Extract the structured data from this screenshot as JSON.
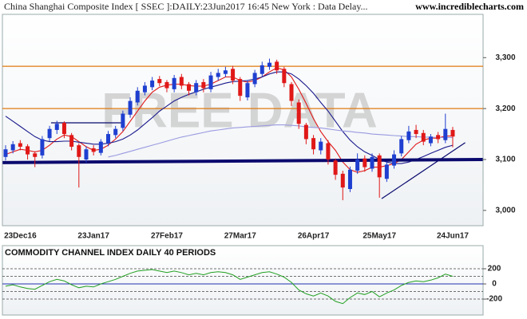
{
  "header": {
    "title": "China Shanghai Composite Index [ SSEC ]:DAILY:23Jun2017 16:45 New York : Data Delay...",
    "site": "www.incrediblecharts.com"
  },
  "chart_data": [
    {
      "type": "candlestick",
      "watermark": "FREE DATA",
      "categories": [
        null,
        null,
        "23Dec16",
        null,
        null,
        null,
        null,
        null,
        null,
        null,
        null,
        null,
        "23Jan17",
        null,
        null,
        null,
        null,
        null,
        null,
        null,
        null,
        null,
        "27Feb17",
        null,
        null,
        null,
        null,
        null,
        null,
        null,
        null,
        null,
        "27Mar17",
        null,
        null,
        null,
        null,
        null,
        null,
        null,
        null,
        null,
        "26Apr17",
        null,
        null,
        null,
        null,
        null,
        null,
        null,
        null,
        "25May17",
        null,
        null,
        null,
        null,
        null,
        null,
        null,
        null,
        null,
        "24Jun17"
      ],
      "open": [
        3105,
        3118,
        3132,
        3126,
        3112,
        3108,
        3142,
        3158,
        3172,
        3148,
        3128,
        3100,
        3122,
        3113,
        3132,
        3148,
        3162,
        3188,
        3212,
        3232,
        3242,
        3258,
        3252,
        3238,
        3262,
        3248,
        3232,
        3252,
        3238,
        3262,
        3268,
        3278,
        3258,
        3222,
        3248,
        3268,
        3282,
        3292,
        3278,
        3248,
        3212,
        3168,
        3142,
        3118,
        3132,
        3098,
        3072,
        3042,
        3078,
        3102,
        3082,
        3108,
        3062,
        3088,
        3112,
        3138,
        3158,
        3152,
        3132,
        3148,
        3138,
        3158
      ],
      "high": [
        3128,
        3136,
        3138,
        3130,
        3116,
        3146,
        3166,
        3176,
        3175,
        3152,
        3132,
        3126,
        3128,
        3140,
        3156,
        3166,
        3196,
        3222,
        3242,
        3252,
        3262,
        3264,
        3256,
        3266,
        3268,
        3252,
        3256,
        3258,
        3272,
        3278,
        3282,
        3284,
        3262,
        3256,
        3276,
        3292,
        3298,
        3296,
        3282,
        3252,
        3218,
        3172,
        3148,
        3142,
        3138,
        3102,
        3078,
        3086,
        3112,
        3108,
        3112,
        3112,
        3096,
        3118,
        3146,
        3166,
        3168,
        3158,
        3150,
        3154,
        3190,
        3164
      ],
      "low": [
        3098,
        3112,
        3118,
        3100,
        3085,
        3102,
        3136,
        3150,
        3142,
        3118,
        3045,
        3094,
        3108,
        3108,
        3126,
        3142,
        3156,
        3182,
        3206,
        3226,
        3236,
        3244,
        3232,
        3232,
        3238,
        3226,
        3226,
        3232,
        3232,
        3255,
        3262,
        3248,
        3215,
        3216,
        3242,
        3262,
        3276,
        3268,
        3242,
        3205,
        3160,
        3130,
        3110,
        3110,
        3090,
        3060,
        3020,
        3036,
        3072,
        3076,
        3076,
        3025,
        3056,
        3082,
        3106,
        3132,
        3142,
        3128,
        3126,
        3132,
        3132,
        3124
      ],
      "close": [
        3120,
        3130,
        3125,
        3110,
        3105,
        3140,
        3160,
        3170,
        3150,
        3125,
        3105,
        3120,
        3115,
        3135,
        3150,
        3160,
        3190,
        3215,
        3235,
        3245,
        3255,
        3250,
        3240,
        3260,
        3245,
        3235,
        3250,
        3240,
        3265,
        3270,
        3275,
        3255,
        3225,
        3250,
        3270,
        3285,
        3290,
        3275,
        3250,
        3215,
        3170,
        3140,
        3120,
        3135,
        3100,
        3070,
        3045,
        3080,
        3100,
        3085,
        3105,
        3065,
        3090,
        3110,
        3140,
        3155,
        3150,
        3135,
        3145,
        3140,
        3160,
        3145
      ],
      "up_color": "#1f3fd0",
      "down_color": "#e01818",
      "series": [
        {
          "color": "#e01818",
          "values": [
            3110,
            3115,
            3120,
            3118,
            3115,
            3118,
            3128,
            3140,
            3148,
            3145,
            3135,
            3125,
            3118,
            3120,
            3128,
            3140,
            3155,
            3175,
            3195,
            3215,
            3232,
            3242,
            3246,
            3248,
            3248,
            3245,
            3244,
            3244,
            3248,
            3255,
            3262,
            3262,
            3255,
            3252,
            3255,
            3262,
            3272,
            3280,
            3276,
            3262,
            3238,
            3210,
            3180,
            3155,
            3135,
            3118,
            3095,
            3080,
            3075,
            3078,
            3085,
            3085,
            3088,
            3092,
            3100,
            3115,
            3130,
            3138,
            3142,
            3142,
            3146,
            3146
          ]
        },
        {
          "color": "#1a1a8c",
          "values": [
            3185,
            3175,
            3165,
            3155,
            3145,
            3138,
            3135,
            3135,
            3136,
            3136,
            3134,
            3132,
            3130,
            3130,
            3132,
            3135,
            3140,
            3148,
            3158,
            3170,
            3182,
            3195,
            3205,
            3215,
            3222,
            3228,
            3233,
            3238,
            3242,
            3246,
            3250,
            3253,
            3254,
            3255,
            3258,
            3262,
            3268,
            3272,
            3272,
            3268,
            3258,
            3245,
            3230,
            3212,
            3195,
            3175,
            3155,
            3138,
            3125,
            3115,
            3108,
            3100,
            3095,
            3092,
            3092,
            3095,
            3100,
            3106,
            3112,
            3118,
            3124,
            3128
          ]
        },
        {
          "color": "#9a9ae0",
          "values": [
            null,
            null,
            null,
            null,
            null,
            null,
            null,
            null,
            null,
            null,
            null,
            null,
            null,
            null,
            3105,
            3108,
            3112,
            3116,
            3120,
            3124,
            3128,
            3132,
            3136,
            3140,
            3144,
            3147,
            3150,
            3153,
            3156,
            3158,
            3160,
            3162,
            3163,
            3164,
            3165,
            3166,
            3167,
            3168,
            3168,
            3167,
            3166,
            3164,
            3163,
            3162,
            3160,
            3158,
            3156,
            3155,
            3153,
            3152,
            3150,
            3149,
            3148,
            3147,
            3146,
            3145,
            3145,
            3144,
            3144,
            3143,
            3143,
            3143
          ]
        }
      ],
      "hlines": [
        {
          "value": 3283,
          "color": "#e07a10"
        },
        {
          "value": 3200,
          "color": "#e07a10"
        }
      ],
      "trendlines": [
        {
          "x": [
            -0.4,
            65.1
          ],
          "y": [
            3094,
            3100
          ],
          "color": "#0a0a6e",
          "heavy": true
        },
        {
          "x": [
            6.2,
            16
          ],
          "y": [
            3172,
            3172
          ],
          "color": "#0a0a6e",
          "heavy": false
        },
        {
          "x": [
            51.3,
            62.7
          ],
          "y": [
            3023,
            3133
          ],
          "color": "#0a0a6e",
          "heavy": false
        }
      ],
      "ylim": [
        2970,
        3385
      ],
      "yticks": [
        {
          "value": 3000,
          "label": "3,000"
        },
        {
          "value": 3100,
          "label": "3,100"
        },
        {
          "value": 3200,
          "label": "3,200"
        },
        {
          "value": 3300,
          "label": "3,300"
        }
      ]
    },
    {
      "type": "line",
      "title": "COMMODITY CHANNEL INDEX DAILY 40 PERIODS",
      "series": [
        {
          "color": "#22a022",
          "values": [
            -30,
            -10,
            -40,
            -60,
            -70,
            -20,
            30,
            60,
            40,
            -10,
            -50,
            -30,
            -40,
            0,
            30,
            60,
            100,
            140,
            170,
            180,
            190,
            170,
            150,
            170,
            150,
            120,
            140,
            120,
            150,
            160,
            150,
            120,
            60,
            90,
            120,
            150,
            160,
            130,
            90,
            20,
            -80,
            -130,
            -160,
            -120,
            -160,
            -230,
            -260,
            -180,
            -120,
            -140,
            -100,
            -170,
            -120,
            -80,
            -20,
            20,
            40,
            30,
            50,
            80,
            130,
            100
          ]
        }
      ],
      "levels": [
        200,
        100,
        -100,
        -200
      ],
      "zero_line": 0,
      "ylim": [
        -410,
        505
      ],
      "yticks": [
        200,
        0,
        -200
      ]
    }
  ]
}
